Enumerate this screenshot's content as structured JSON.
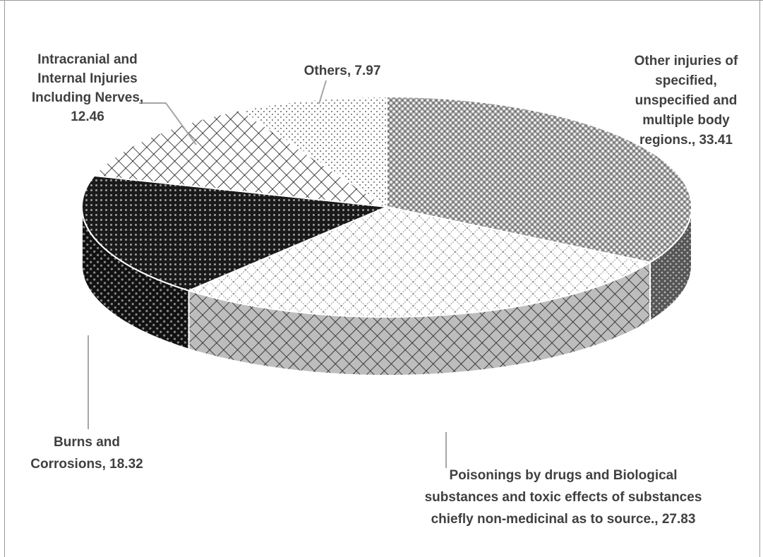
{
  "chart_data": {
    "type": "pie",
    "title": "",
    "three_d": true,
    "legend": "none",
    "slices": [
      {
        "label": "Other injuries of specified, unspecified and multiple body regions.",
        "value": 33.41,
        "label_lines": [
          "Other injuries of",
          "specified,",
          "unspecified and",
          "multiple body",
          "regions., 33.41"
        ]
      },
      {
        "label": "Poisonings by drugs and Biological substances and toxic effects of substances chiefly non-medicinal as to source.",
        "value": 27.83,
        "label_lines": [
          "Poisonings by drugs and  Biological",
          "substances and toxic effects of substances",
          "chiefly non-medicinal as to source., 27.83"
        ]
      },
      {
        "label": "Burns and Corrosions",
        "value": 18.32,
        "label_lines": [
          "Burns and",
          "Corrosions, 18.32"
        ]
      },
      {
        "label": "Intracranial and Internal Injuries Including Nerves",
        "value": 12.46,
        "label_lines": [
          "Intracranial and",
          "Internal Injuries",
          "Including Nerves,",
          "12.46"
        ]
      },
      {
        "label": "Others",
        "value": 7.97,
        "label_lines": [
          "Others, 7.97"
        ]
      }
    ]
  }
}
